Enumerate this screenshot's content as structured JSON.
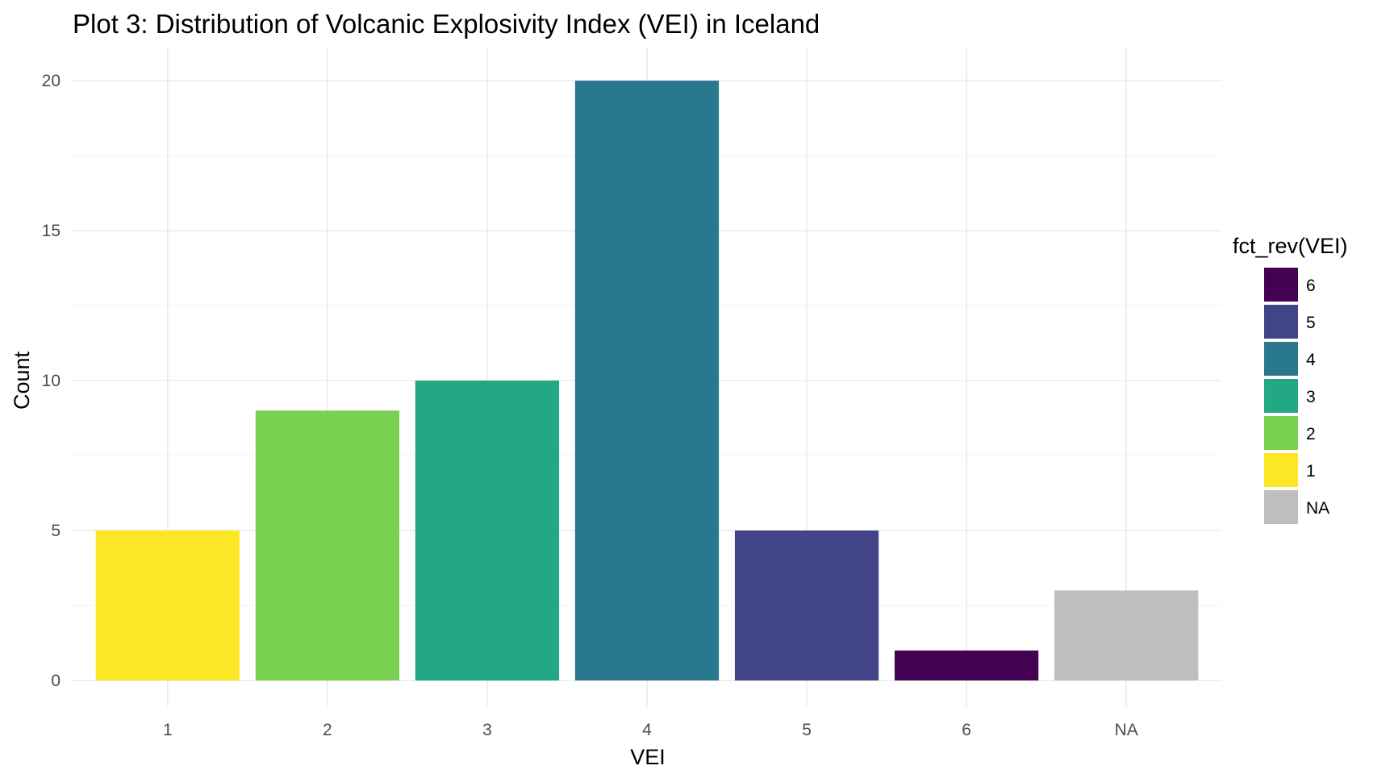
{
  "chart_data": {
    "type": "bar",
    "title": "Plot 3: Distribution of Volcanic Explosivity Index (VEI) in Iceland",
    "xlabel": "VEI",
    "ylabel": "Count",
    "categories": [
      "1",
      "2",
      "3",
      "4",
      "5",
      "6",
      "NA"
    ],
    "values": [
      5,
      9,
      10,
      20,
      5,
      1,
      3
    ],
    "bar_colors": [
      "#FDE725",
      "#7AD151",
      "#22A884",
      "#2A788E",
      "#414487",
      "#440154",
      "#BEBEBE"
    ],
    "ylim": [
      0,
      21
    ],
    "yticks": [
      0,
      5,
      10,
      15,
      20
    ],
    "grid": true,
    "legend": {
      "title": "fct_rev(VEI)",
      "position": "right",
      "entries": [
        {
          "label": "6",
          "color": "#440154"
        },
        {
          "label": "5",
          "color": "#414487"
        },
        {
          "label": "4",
          "color": "#2A788E"
        },
        {
          "label": "3",
          "color": "#22A884"
        },
        {
          "label": "2",
          "color": "#7AD151"
        },
        {
          "label": "1",
          "color": "#FDE725"
        },
        {
          "label": "NA",
          "color": "#BEBEBE"
        }
      ]
    }
  }
}
